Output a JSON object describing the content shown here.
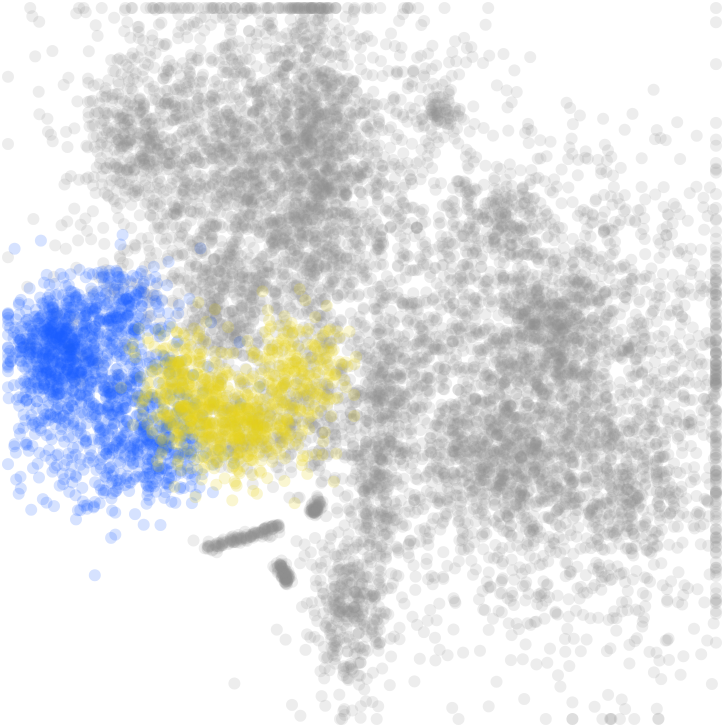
{
  "chart_data": {
    "type": "scatter",
    "title": "",
    "xlabel": "",
    "ylabel": "",
    "grid": false,
    "axes_visible": false,
    "xlim": [
      0,
      100
    ],
    "ylim": [
      0,
      100
    ],
    "colors": {
      "background_cells": "#8c8c8c",
      "highlight_1": "#1a5cff",
      "highlight_2": "#e6d21a",
      "background_bg": "#ffffff"
    },
    "series": [
      {
        "color_key": "background_cells",
        "opacity": 0.16,
        "clusters": [
          {
            "cx": 37,
            "cy": 77,
            "sx": 12.5,
            "sy": 12.5,
            "n": 2400
          },
          {
            "cx": 18,
            "cy": 82,
            "sx": 3.5,
            "sy": 5.5,
            "n": 260
          },
          {
            "cx": 44,
            "cy": 78,
            "sx": 2.5,
            "sy": 13,
            "n": 420
          },
          {
            "cx": 61,
            "cy": 86,
            "sx": 1.2,
            "sy": 1.8,
            "n": 60
          },
          {
            "cx": 31,
            "cy": 57,
            "sx": 3,
            "sy": 4.5,
            "n": 220
          },
          {
            "cx": 76,
            "cy": 45,
            "sx": 15,
            "sy": 17,
            "n": 3000
          },
          {
            "cx": 70,
            "cy": 70,
            "sx": 3,
            "sy": 2.8,
            "n": 140
          },
          {
            "cx": 77,
            "cy": 55,
            "sx": 4,
            "sy": 5,
            "n": 260
          },
          {
            "cx": 70,
            "cy": 37,
            "sx": 6.5,
            "sy": 5.5,
            "n": 380
          },
          {
            "cx": 88,
            "cy": 30,
            "sx": 3.5,
            "sy": 3.5,
            "n": 140
          },
          {
            "cx": 52,
            "cy": 33,
            "sx": 1.8,
            "sy": 9,
            "n": 240
          },
          {
            "cx": 48,
            "cy": 15,
            "sx": 2.8,
            "sy": 6,
            "n": 300
          },
          {
            "cx": 54,
            "cy": 49,
            "sx": 2.8,
            "sy": 4,
            "n": 140
          },
          {
            "cx": 40,
            "cy": 42,
            "sx": 8,
            "sy": 4,
            "n": 300
          }
        ],
        "segments": [
          {
            "x0": 28,
            "y0": 24,
            "x1": 38,
            "y1": 27,
            "width": 1.0,
            "n": 110
          },
          {
            "x0": 38.5,
            "y0": 22,
            "x1": 39.5,
            "y1": 19,
            "width": 0.8,
            "n": 70
          },
          {
            "x0": 43,
            "y0": 29,
            "x1": 44,
            "y1": 30.5,
            "width": 0.8,
            "n": 50
          }
        ]
      },
      {
        "color_key": "highlight_1",
        "opacity": 0.18,
        "clusters": [
          {
            "cx": 6.5,
            "cy": 53,
            "sx": 3,
            "sy": 4,
            "n": 420
          },
          {
            "cx": 12,
            "cy": 46,
            "sx": 6,
            "sy": 8,
            "n": 700
          },
          {
            "cx": 21,
            "cy": 38,
            "sx": 4,
            "sy": 3.5,
            "n": 260
          },
          {
            "cx": 16,
            "cy": 58,
            "sx": 4,
            "sy": 3,
            "n": 160
          }
        ],
        "segments": []
      },
      {
        "color_key": "highlight_2",
        "opacity": 0.2,
        "clusters": [
          {
            "cx": 32.5,
            "cy": 41,
            "sx": 5,
            "sy": 3.5,
            "n": 420
          },
          {
            "cx": 25,
            "cy": 47,
            "sx": 3,
            "sy": 4,
            "n": 260
          },
          {
            "cx": 41,
            "cy": 49,
            "sx": 3.5,
            "sy": 4,
            "n": 200
          }
        ],
        "segments": []
      }
    ]
  }
}
